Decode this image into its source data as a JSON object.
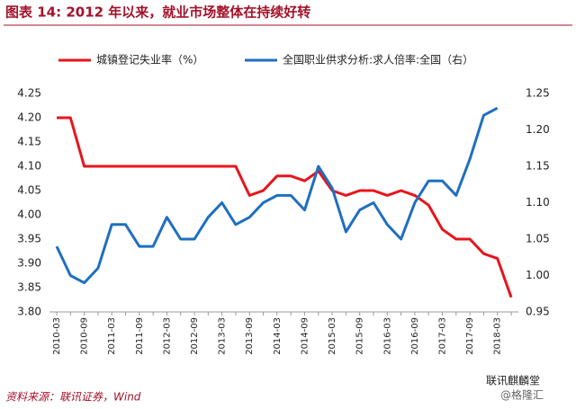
{
  "chart_data": {
    "type": "line",
    "title": "图表 14: 2012 年以来，就业市场整体在持续好转",
    "source": "资料来源：联讯证券，Wind",
    "watermark": [
      "联讯麒麟堂",
      "@格隆汇"
    ],
    "categories": [
      "2010-03",
      null,
      "2010-09",
      null,
      "2011-03",
      null,
      "2011-09",
      null,
      "2012-03",
      null,
      "2012-09",
      null,
      "2013-03",
      null,
      "2013-09",
      null,
      "2014-03",
      null,
      "2014-09",
      null,
      "2015-03",
      null,
      "2015-09",
      null,
      "2016-03",
      null,
      "2016-09",
      null,
      "2017-03",
      null,
      "2017-09",
      null,
      "2018-03",
      null
    ],
    "series": [
      {
        "name": "城镇登记失业率（%）",
        "color": "#e8141b",
        "values": [
          4.2,
          4.2,
          4.1,
          4.1,
          4.1,
          4.1,
          4.1,
          4.1,
          4.1,
          4.1,
          4.1,
          4.1,
          4.1,
          4.1,
          4.04,
          4.05,
          4.08,
          4.08,
          4.07,
          4.09,
          4.05,
          4.04,
          4.05,
          4.05,
          4.04,
          4.05,
          4.04,
          4.02,
          3.97,
          3.95,
          3.95,
          3.92,
          3.91,
          3.83
        ]
      },
      {
        "name": "全国职业供求分析:求人倍率:全国（右）",
        "color": "#1f6fc0",
        "axis": "y2",
        "values": [
          1.04,
          1.0,
          0.99,
          1.01,
          1.07,
          1.07,
          1.04,
          1.04,
          1.08,
          1.05,
          1.05,
          1.08,
          1.1,
          1.07,
          1.08,
          1.1,
          1.11,
          1.11,
          1.09,
          1.15,
          1.12,
          1.06,
          1.09,
          1.1,
          1.07,
          1.05,
          1.1,
          1.13,
          1.13,
          1.11,
          1.16,
          1.22,
          1.23,
          null
        ]
      }
    ],
    "ylim": [
      3.8,
      4.25
    ],
    "yticks": [
      {
        "value": 3.8,
        "label": "3.80"
      },
      {
        "value": 3.85,
        "label": "3.85"
      },
      {
        "value": 3.9,
        "label": "3.90"
      },
      {
        "value": 3.95,
        "label": "3.95"
      },
      {
        "value": 4.0,
        "label": "4.00"
      },
      {
        "value": 4.05,
        "label": "4.05"
      },
      {
        "value": 4.1,
        "label": "4.10"
      },
      {
        "value": 4.15,
        "label": "4.15"
      },
      {
        "value": 4.2,
        "label": "4.20"
      },
      {
        "value": 4.25,
        "label": "4.25"
      }
    ],
    "y2lim": [
      0.95,
      1.25
    ],
    "y2ticks": [
      {
        "value": 0.95,
        "label": "0.95"
      },
      {
        "value": 1.0,
        "label": "1.00"
      },
      {
        "value": 1.05,
        "label": "1.05"
      },
      {
        "value": 1.1,
        "label": "1.10"
      },
      {
        "value": 1.15,
        "label": "1.15"
      },
      {
        "value": 1.2,
        "label": "1.20"
      },
      {
        "value": 1.25,
        "label": "1.25"
      }
    ],
    "grid": false,
    "legend": "top"
  }
}
